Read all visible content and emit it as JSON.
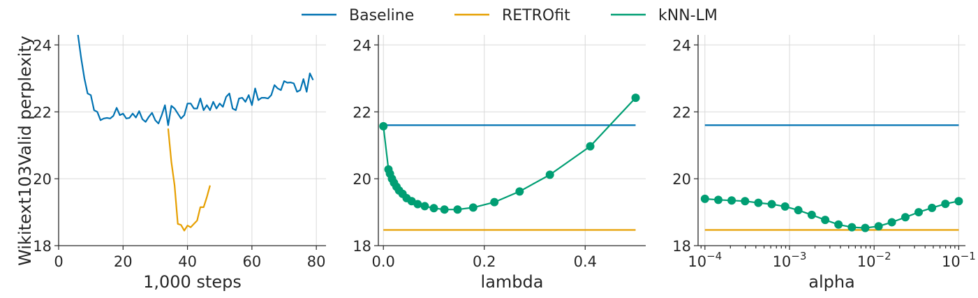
{
  "colors": {
    "baseline": "#0072b2",
    "retrofit": "#e69f00",
    "knn": "#009e73"
  },
  "legend": [
    "Baseline",
    "RETROfit",
    "kNN-LM"
  ],
  "chart_data": [
    {
      "type": "line",
      "xlabel": "1,000 steps",
      "ylabel": "Wikitext103Valid perplexity",
      "xlim": [
        0,
        83
      ],
      "ylim": [
        18,
        24.3
      ],
      "xticks": [
        0,
        20,
        40,
        60,
        80
      ],
      "xtick_labels": [
        "0",
        "20",
        "40",
        "60",
        "80"
      ],
      "yticks": [
        18,
        20,
        22,
        24
      ],
      "ytick_labels": [
        "18",
        "20",
        "22",
        "24"
      ],
      "grid": true,
      "series": [
        {
          "name": "Baseline",
          "x": [
            6,
            7,
            8,
            9,
            10,
            11,
            12,
            13,
            14,
            15,
            16,
            17,
            18,
            19,
            20,
            21,
            22,
            23,
            24,
            25,
            26,
            27,
            28,
            29,
            30,
            31,
            32,
            33,
            34,
            35,
            36,
            37,
            38,
            39,
            40,
            41,
            42,
            43,
            44,
            45,
            46,
            47,
            48,
            49,
            50,
            51,
            52,
            53,
            54,
            55,
            56,
            57,
            58,
            59,
            60,
            61,
            62,
            63,
            64,
            65,
            66,
            67,
            68,
            69,
            70,
            71,
            72,
            73,
            74,
            75,
            76,
            77,
            78,
            79
          ],
          "y": [
            24.3,
            23.6,
            23.0,
            22.55,
            22.5,
            22.05,
            22.0,
            21.75,
            21.8,
            21.82,
            21.8,
            21.88,
            22.12,
            21.9,
            21.95,
            21.8,
            21.82,
            21.95,
            21.83,
            22.02,
            21.78,
            21.7,
            21.85,
            21.97,
            21.75,
            21.65,
            21.9,
            22.2,
            21.6,
            22.18,
            22.1,
            21.95,
            21.8,
            21.9,
            22.25,
            22.25,
            22.1,
            22.1,
            22.4,
            22.05,
            22.2,
            22.05,
            22.3,
            22.1,
            22.25,
            22.15,
            22.45,
            22.55,
            22.1,
            22.05,
            22.4,
            22.42,
            22.3,
            22.5,
            22.2,
            22.7,
            22.35,
            22.42,
            22.42,
            22.4,
            22.5,
            22.8,
            22.7,
            22.65,
            22.92,
            22.87,
            22.88,
            22.85,
            22.6,
            22.65,
            22.98,
            22.6,
            23.15,
            22.95
          ]
        },
        {
          "name": "RETROfit",
          "x": [
            34,
            35,
            36,
            37,
            38,
            39,
            40,
            41,
            42,
            43,
            44,
            45,
            46,
            47
          ],
          "y": [
            21.5,
            20.5,
            19.8,
            18.65,
            18.62,
            18.45,
            18.6,
            18.55,
            18.65,
            18.75,
            19.15,
            19.15,
            19.45,
            19.8
          ]
        }
      ]
    },
    {
      "type": "line",
      "xlabel": "lambda",
      "ylabel": "",
      "xlim": [
        -0.01,
        0.52
      ],
      "ylim": [
        18,
        24.3
      ],
      "xticks": [
        0.0,
        0.2,
        0.4
      ],
      "xtick_labels": [
        "0.0",
        "0.2",
        "0.4"
      ],
      "yticks": [
        18,
        20,
        22,
        24
      ],
      "ytick_labels": [
        "18",
        "20",
        "22",
        "24"
      ],
      "grid": true,
      "series": [
        {
          "name": "Baseline",
          "x": [
            0,
            0.5
          ],
          "y": [
            21.6,
            21.6
          ]
        },
        {
          "name": "RETROfit",
          "x": [
            0,
            0.5
          ],
          "y": [
            18.47,
            18.47
          ]
        },
        {
          "name": "kNN-LM",
          "markers": true,
          "x": [
            0,
            0.01,
            0.013,
            0.017,
            0.021,
            0.026,
            0.031,
            0.038,
            0.046,
            0.056,
            0.068,
            0.082,
            0.1,
            0.121,
            0.147,
            0.178,
            0.22,
            0.27,
            0.33,
            0.41,
            0.5
          ],
          "y": [
            21.57,
            20.28,
            20.15,
            20.0,
            19.88,
            19.76,
            19.65,
            19.55,
            19.42,
            19.33,
            19.24,
            19.18,
            19.12,
            19.08,
            19.08,
            19.14,
            19.3,
            19.62,
            20.12,
            20.97,
            22.42
          ]
        }
      ]
    },
    {
      "type": "line",
      "xscale": "log",
      "xlabel": "alpha",
      "ylabel": "",
      "xlim": [
        8.3e-05,
        0.12
      ],
      "ylim": [
        18,
        24.3
      ],
      "xticks": [
        0.0001,
        0.001,
        0.01,
        0.1
      ],
      "xtick_labels": [
        {
          "base": "10",
          "exp": "−4"
        },
        {
          "base": "10",
          "exp": "−3"
        },
        {
          "base": "10",
          "exp": "−2"
        },
        {
          "base": "10",
          "exp": "−1"
        }
      ],
      "yticks": [
        18,
        20,
        22,
        24
      ],
      "ytick_labels": [
        "18",
        "20",
        "22",
        "24"
      ],
      "grid": true,
      "series": [
        {
          "name": "Baseline",
          "x": [
            0.0001,
            0.1
          ],
          "y": [
            21.6,
            21.6
          ]
        },
        {
          "name": "RETROfit",
          "x": [
            0.0001,
            0.1
          ],
          "y": [
            18.47,
            18.47
          ]
        },
        {
          "name": "kNN-LM",
          "markers": true,
          "x": [
            0.0001,
            0.000144,
            0.000207,
            0.000298,
            0.000428,
            0.000616,
            0.000886,
            0.00127,
            0.00183,
            0.00264,
            0.00379,
            0.00546,
            0.00785,
            0.0113,
            0.0162,
            0.0234,
            0.0336,
            0.0483,
            0.0695,
            0.1
          ],
          "y": [
            19.4,
            19.37,
            19.35,
            19.33,
            19.28,
            19.24,
            19.17,
            19.06,
            18.92,
            18.77,
            18.63,
            18.55,
            18.53,
            18.58,
            18.7,
            18.85,
            19.0,
            19.13,
            19.25,
            19.33
          ]
        }
      ]
    }
  ]
}
